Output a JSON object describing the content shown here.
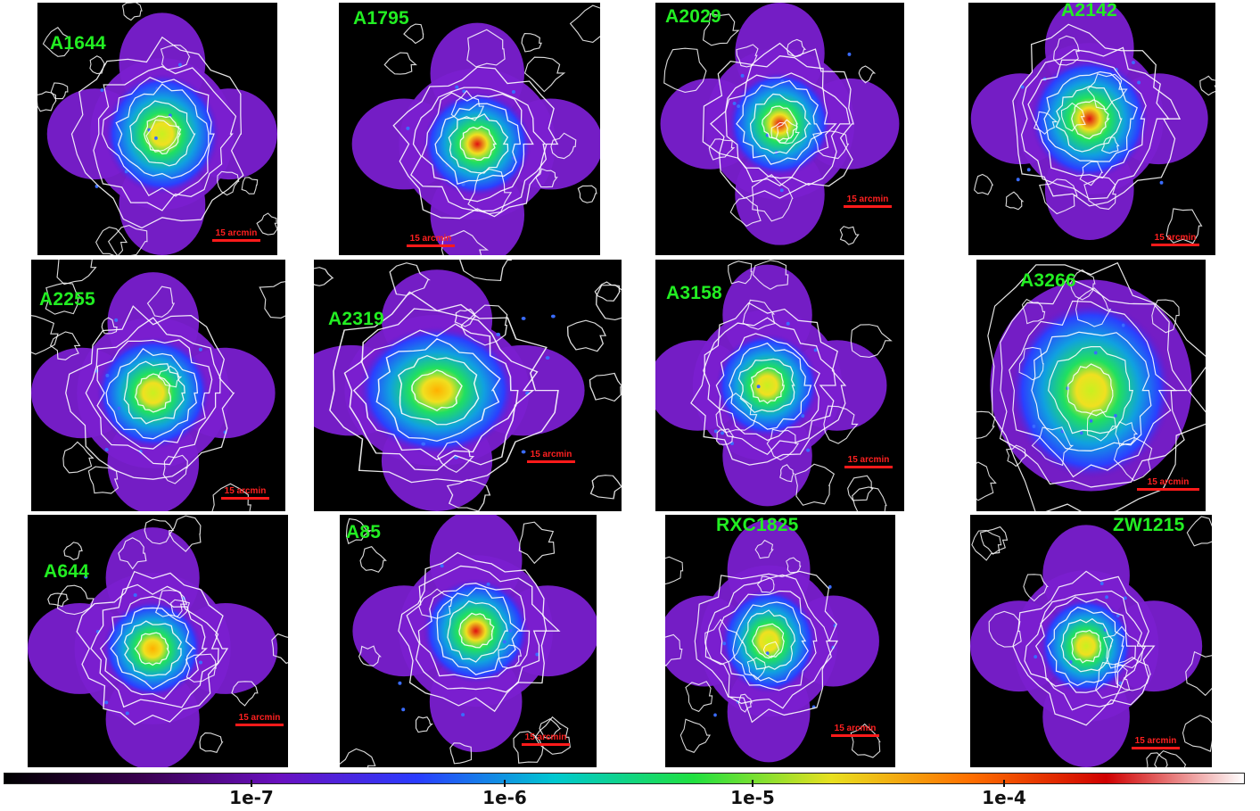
{
  "panels": [
    {
      "label": "A1644",
      "scale_bar": "15 arcmin"
    },
    {
      "label": "A1795",
      "scale_bar": "15 arcmin"
    },
    {
      "label": "A2029",
      "scale_bar": "15 arcmin"
    },
    {
      "label": "A2142",
      "scale_bar": "15 arcmin"
    },
    {
      "label": "A2255",
      "scale_bar": "15 arcmin"
    },
    {
      "label": "A2319",
      "scale_bar": "15 arcmin"
    },
    {
      "label": "A3158",
      "scale_bar": "15 arcmin"
    },
    {
      "label": "A3266",
      "scale_bar": "15 arcmin"
    },
    {
      "label": "A644",
      "scale_bar": "15 arcmin"
    },
    {
      "label": "A85",
      "scale_bar": "15 arcmin"
    },
    {
      "label": "RXC1825",
      "scale_bar": "15 arcmin"
    },
    {
      "label": "ZW1215",
      "scale_bar": "15 arcmin"
    }
  ],
  "colorbar": {
    "scale": "log",
    "colormap": [
      "#000000",
      "#3a0050",
      "#6a10c0",
      "#2a3cff",
      "#00c8d0",
      "#20e040",
      "#e8e020",
      "#ff7000",
      "#d00000",
      "#ffffff"
    ],
    "ticks": [
      {
        "value": 1e-07,
        "label": "1e-7"
      },
      {
        "value": 1e-06,
        "label": "1e-6"
      },
      {
        "value": 1e-05,
        "label": "1e-5"
      },
      {
        "value": 0.0001,
        "label": "1e-4"
      }
    ]
  },
  "colors": {
    "label": "#22ee22",
    "scale_bar": "#ff1a1a",
    "contour": "#ffffff",
    "background": "#000000"
  }
}
